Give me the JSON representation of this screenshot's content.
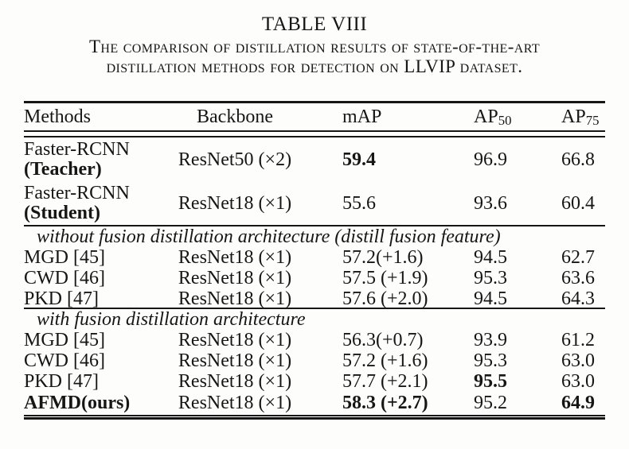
{
  "caption": {
    "title": "TABLE VIII",
    "line1": "The comparison of distillation results of state-of-the-art",
    "line2": "distillation methods for detection on LLVIP dataset."
  },
  "table": {
    "header": {
      "methods": "Methods",
      "backbone": "Backbone",
      "map": "mAP",
      "ap50_base": "AP",
      "ap50_sub": "50",
      "ap75_base": "AP",
      "ap75_sub": "75"
    },
    "rows": [
      {
        "method_line1": "Faster-RCNN",
        "method_line2": "(Teacher)",
        "backbone": "ResNet50 (×2)",
        "map": "59.4",
        "ap50": "96.9",
        "ap75": "66.8"
      },
      {
        "method_line1": "Faster-RCNN",
        "method_line2": "(Student)",
        "backbone": "ResNet18 (×1)",
        "map": "55.6",
        "ap50": "93.6",
        "ap75": "60.4"
      },
      {
        "label": "without fusion distillation architecture (distill fusion feature)"
      },
      {
        "method": "MGD [45]",
        "backbone": "ResNet18 (×1)",
        "map": "57.2(+1.6)",
        "ap50": "94.5",
        "ap75": "62.7"
      },
      {
        "method": "CWD [46]",
        "backbone": "ResNet18 (×1)",
        "map": "57.5 (+1.9)",
        "ap50": "95.3",
        "ap75": "63.6"
      },
      {
        "method": "PKD [47]",
        "backbone": "ResNet18 (×1)",
        "map": "57.6 (+2.0)",
        "ap50": "94.5",
        "ap75": "64.3"
      },
      {
        "label": "with fusion distillation architecture"
      },
      {
        "method": "MGD [45]",
        "backbone": "ResNet18 (×1)",
        "map": "56.3(+0.7)",
        "ap50": "93.9",
        "ap75": "61.2"
      },
      {
        "method": "CWD [46]",
        "backbone": "ResNet18 (×1)",
        "map": "57.2 (+1.6)",
        "ap50": "95.3",
        "ap75": "63.0"
      },
      {
        "method": "PKD [47]",
        "backbone": "ResNet18 (×1)",
        "map": "57.7 (+2.1)",
        "ap50": "95.5",
        "ap75": "63.0"
      },
      {
        "method": "AFMD(ours)",
        "backbone": "ResNet18 (×1)",
        "map": "58.3 (+2.7)",
        "ap50": "95.2",
        "ap75": "64.9"
      }
    ]
  }
}
